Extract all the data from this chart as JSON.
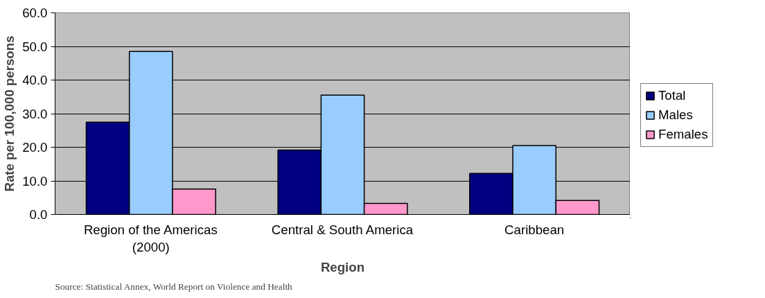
{
  "chart_data": {
    "type": "bar",
    "xlabel": "Region",
    "ylabel": "Rate per 100,000 persons",
    "categories": [
      "Region of the Americas\n(2000)",
      "Central & South America",
      "Caribbean"
    ],
    "series": [
      {
        "name": "Total",
        "color": "#000080",
        "values": [
          27.5,
          19.2,
          12.2
        ]
      },
      {
        "name": "Males",
        "color": "#99ccff",
        "values": [
          48.5,
          35.5,
          20.5
        ]
      },
      {
        "name": "Females",
        "color": "#ff99cc",
        "values": [
          7.6,
          3.3,
          4.2
        ]
      }
    ],
    "ylim": [
      0,
      60
    ],
    "yticks": [
      {
        "value": 0,
        "label": "0.0"
      },
      {
        "value": 10,
        "label": "10.0"
      },
      {
        "value": 20,
        "label": "20.0"
      },
      {
        "value": 30,
        "label": "30.0"
      },
      {
        "value": 40,
        "label": "40.0"
      },
      {
        "value": 50,
        "label": "50.0"
      },
      {
        "value": 60,
        "label": "60.0"
      }
    ],
    "grid": "y",
    "legend": "right",
    "annotations": [
      "Source: Statistical Annex, World Report on Violence and Health"
    ]
  }
}
